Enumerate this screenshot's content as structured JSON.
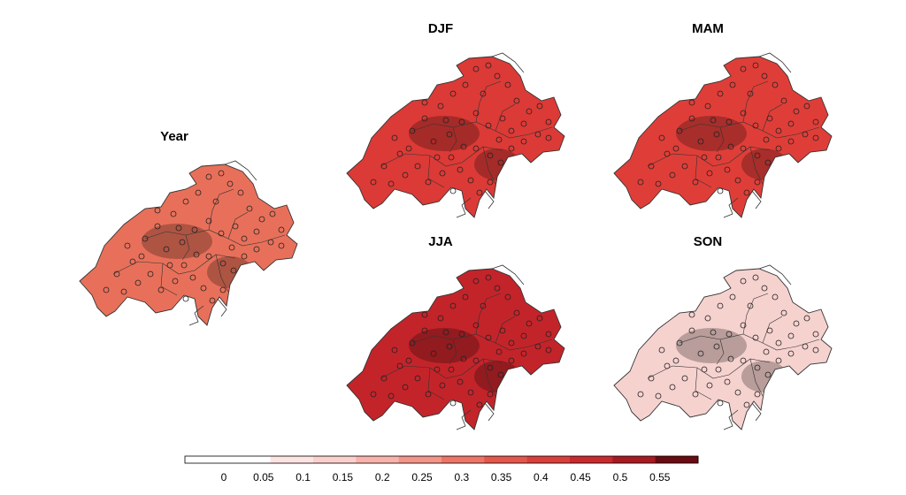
{
  "panels": [
    {
      "id": "year",
      "title": "Year",
      "fill": "#e8705a"
    },
    {
      "id": "djf",
      "title": "DJF",
      "fill": "#dc3a36"
    },
    {
      "id": "mam",
      "title": "MAM",
      "fill": "#df3e38"
    },
    {
      "id": "jja",
      "title": "JJA",
      "fill": "#c3242a"
    },
    {
      "id": "son",
      "title": "SON",
      "fill": "#f6d2cf"
    }
  ],
  "colorbar": {
    "colors": [
      "#ffffff",
      "#ffffff",
      "#fde4e3",
      "#fbcfcc",
      "#f9b2ab",
      "#f49488",
      "#ee7467",
      "#e4574b",
      "#d8403b",
      "#c92a2d",
      "#a81a22",
      "#6b0a10"
    ],
    "labels": [
      "0",
      "0.05",
      "0.1",
      "0.15",
      "0.2",
      "0.25",
      "0.3",
      "0.35",
      "0.4",
      "0.45",
      "0.5",
      "0.55"
    ]
  }
}
